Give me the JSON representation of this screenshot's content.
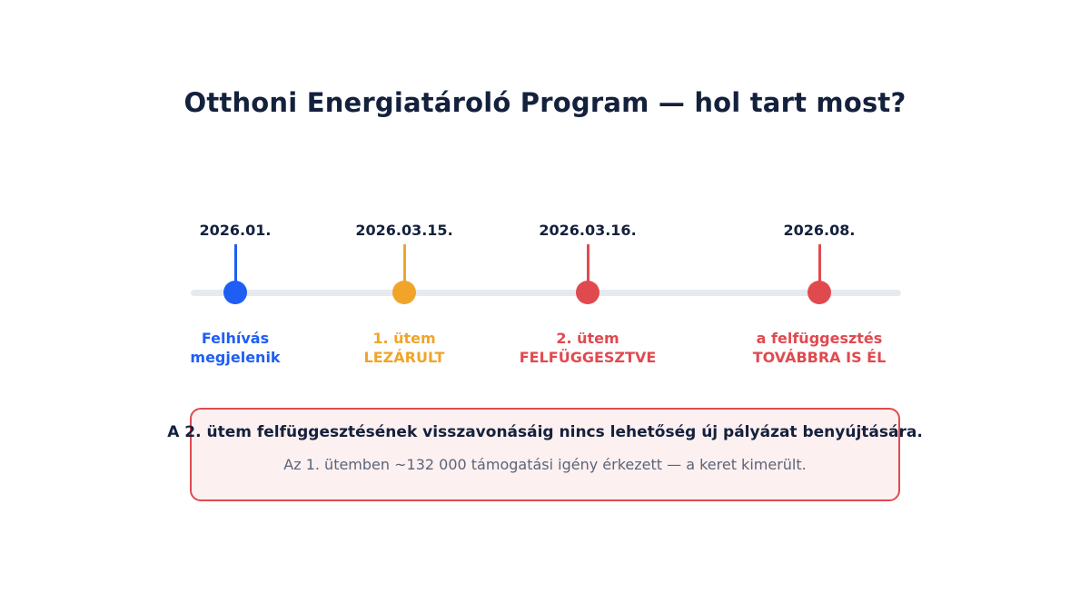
{
  "title": "Otthoni Energiatároló Program — hol tart most?",
  "colors": {
    "blue": "#1f5ef5",
    "orange": "#f0a52a",
    "red": "#e04a4f",
    "track": "#e6eaf0",
    "dark_text": "#14213d",
    "muted_text": "#5c6478",
    "notice_bg": "#fcf0f0"
  },
  "milestones": [
    {
      "date": "2026.01.",
      "label_line1": "Felhívás",
      "label_line2": "megjelenik",
      "status": "blue"
    },
    {
      "date": "2026.03.15.",
      "label_line1": "1. ütem",
      "label_line2": "LEZÁRULT",
      "status": "orange"
    },
    {
      "date": "2026.03.16.",
      "label_line1": "2. ütem",
      "label_line2": "FELFÜGGESZTVE",
      "status": "red"
    },
    {
      "date": "2026.08.",
      "label_line1": "a felfüggesztés",
      "label_line2": "TOVÁBBRA IS ÉL",
      "status": "red"
    }
  ],
  "notice": {
    "main": "A 2. ütem felfüggesztésének visszavonásáig nincs lehetőség új pályázat benyújtására.",
    "sub": "Az 1. ütemben ~132 000 támogatási igény érkezett — a keret kimerült."
  }
}
